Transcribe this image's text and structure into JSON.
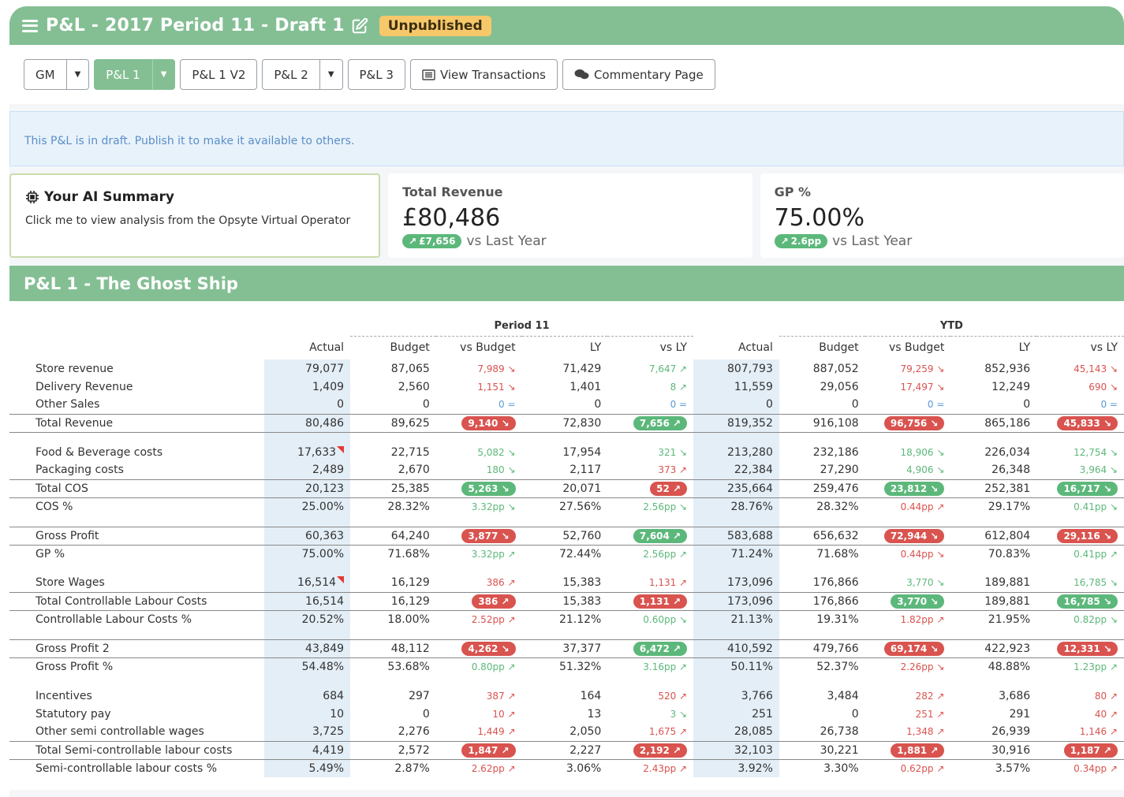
{
  "header": {
    "title": "P&L - 2017 Period 11 - Draft 1",
    "status_badge": "Unpublished"
  },
  "tabs": {
    "gm": "GM",
    "pl1": "P&L 1",
    "pl1v2": "P&L 1 V2",
    "pl2": "P&L 2",
    "pl3": "P&L 3",
    "view_transactions": "View Transactions",
    "commentary": "Commentary Page"
  },
  "alert": "This P&L is in draft. Publish it to make it available to others.",
  "ai_card": {
    "title": "Your AI Summary",
    "text": "Click me to view analysis from the Opsyte Virtual Operator"
  },
  "kpis": {
    "revenue": {
      "label": "Total Revenue",
      "value": "£80,486",
      "delta": "£7,656",
      "suffix": "vs Last Year"
    },
    "gp": {
      "label": "GP %",
      "value": "75.00%",
      "delta": "2.6pp",
      "suffix": "vs Last Year"
    }
  },
  "section_title": "P&L 1 - The Ghost Ship",
  "table": {
    "group_period": "Period 11",
    "group_ytd": "YTD",
    "columns": [
      "Actual",
      "Budget",
      "vs Budget",
      "LY",
      "vs LY",
      "Actual",
      "Budget",
      "vs Budget",
      "LY",
      "vs LY"
    ],
    "rows": [
      {
        "type": "row",
        "label": "Store revenue",
        "cells": [
          [
            "79,077"
          ],
          [
            "87,065"
          ],
          [
            "7,989",
            "r",
            "down"
          ],
          [
            "71,429"
          ],
          [
            "7,647",
            "g",
            "up"
          ],
          [
            "807,793"
          ],
          [
            "887,052"
          ],
          [
            "79,259",
            "r",
            "down"
          ],
          [
            "852,936"
          ],
          [
            "45,143",
            "r",
            "down"
          ]
        ]
      },
      {
        "type": "row",
        "label": "Delivery Revenue",
        "cells": [
          [
            "1,409"
          ],
          [
            "2,560"
          ],
          [
            "1,151",
            "r",
            "down"
          ],
          [
            "1,401"
          ],
          [
            "8",
            "g",
            "up"
          ],
          [
            "11,559"
          ],
          [
            "29,056"
          ],
          [
            "17,497",
            "r",
            "down"
          ],
          [
            "12,249"
          ],
          [
            "690",
            "r",
            "down"
          ]
        ]
      },
      {
        "type": "row",
        "label": "Other Sales",
        "cells": [
          [
            "0"
          ],
          [
            "0"
          ],
          [
            "0",
            "b",
            "eq"
          ],
          [
            "0"
          ],
          [
            "0",
            "b",
            "eq"
          ],
          [
            "0"
          ],
          [
            "0"
          ],
          [
            "0",
            "b",
            "eq"
          ],
          [
            "0"
          ],
          [
            "0",
            "b",
            "eq"
          ]
        ]
      },
      {
        "type": "tot",
        "label": "Total Revenue",
        "cells": [
          [
            "80,486"
          ],
          [
            "89,625"
          ],
          [
            "9,140",
            "R",
            "down"
          ],
          [
            "72,830"
          ],
          [
            "7,656",
            "G",
            "up"
          ],
          [
            "819,352"
          ],
          [
            "916,108"
          ],
          [
            "96,756",
            "R",
            "down"
          ],
          [
            "865,186"
          ],
          [
            "45,833",
            "R",
            "down"
          ]
        ]
      },
      {
        "type": "sp"
      },
      {
        "type": "row",
        "label": "Food & Beverage costs",
        "flag": true,
        "cells": [
          [
            "17,633"
          ],
          [
            "22,715"
          ],
          [
            "5,082",
            "g",
            "down"
          ],
          [
            "17,954"
          ],
          [
            "321",
            "g",
            "down"
          ],
          [
            "213,280"
          ],
          [
            "232,186"
          ],
          [
            "18,906",
            "g",
            "down"
          ],
          [
            "226,034"
          ],
          [
            "12,754",
            "g",
            "down"
          ]
        ]
      },
      {
        "type": "row",
        "label": "Packaging costs",
        "cells": [
          [
            "2,489"
          ],
          [
            "2,670"
          ],
          [
            "180",
            "g",
            "down"
          ],
          [
            "2,117"
          ],
          [
            "373",
            "r",
            "up"
          ],
          [
            "22,384"
          ],
          [
            "27,290"
          ],
          [
            "4,906",
            "g",
            "down"
          ],
          [
            "26,348"
          ],
          [
            "3,964",
            "g",
            "down"
          ]
        ]
      },
      {
        "type": "tot",
        "label": "Total COS",
        "cells": [
          [
            "20,123"
          ],
          [
            "25,385"
          ],
          [
            "5,263",
            "G",
            "down"
          ],
          [
            "20,071"
          ],
          [
            "52",
            "R",
            "up"
          ],
          [
            "235,664"
          ],
          [
            "259,476"
          ],
          [
            "23,812",
            "G",
            "down"
          ],
          [
            "252,381"
          ],
          [
            "16,717",
            "G",
            "down"
          ]
        ]
      },
      {
        "type": "row",
        "label": "COS %",
        "cells": [
          [
            "25.00%"
          ],
          [
            "28.32%"
          ],
          [
            "3.32pp",
            "g",
            "down"
          ],
          [
            "27.56%"
          ],
          [
            "2.56pp",
            "g",
            "down"
          ],
          [
            "28.76%"
          ],
          [
            "28.32%"
          ],
          [
            "0.44pp",
            "r",
            "up"
          ],
          [
            "29.17%"
          ],
          [
            "0.41pp",
            "g",
            "down"
          ]
        ]
      },
      {
        "type": "sp"
      },
      {
        "type": "tot",
        "label": "Gross Profit",
        "cells": [
          [
            "60,363"
          ],
          [
            "64,240"
          ],
          [
            "3,877",
            "R",
            "down"
          ],
          [
            "52,760"
          ],
          [
            "7,604",
            "G",
            "up"
          ],
          [
            "583,688"
          ],
          [
            "656,632"
          ],
          [
            "72,944",
            "R",
            "down"
          ],
          [
            "612,804"
          ],
          [
            "29,116",
            "R",
            "down"
          ]
        ]
      },
      {
        "type": "row",
        "label": "GP %",
        "cells": [
          [
            "75.00%"
          ],
          [
            "71.68%"
          ],
          [
            "3.32pp",
            "g",
            "up"
          ],
          [
            "72.44%"
          ],
          [
            "2.56pp",
            "g",
            "up"
          ],
          [
            "71.24%"
          ],
          [
            "71.68%"
          ],
          [
            "0.44pp",
            "r",
            "down"
          ],
          [
            "70.83%"
          ],
          [
            "0.41pp",
            "g",
            "up"
          ]
        ]
      },
      {
        "type": "sp"
      },
      {
        "type": "row",
        "label": "Store Wages",
        "flag": true,
        "cells": [
          [
            "16,514"
          ],
          [
            "16,129"
          ],
          [
            "386",
            "r",
            "up"
          ],
          [
            "15,383"
          ],
          [
            "1,131",
            "r",
            "up"
          ],
          [
            "173,096"
          ],
          [
            "176,866"
          ],
          [
            "3,770",
            "g",
            "down"
          ],
          [
            "189,881"
          ],
          [
            "16,785",
            "g",
            "down"
          ]
        ]
      },
      {
        "type": "tot",
        "label": "Total Controllable Labour Costs",
        "cells": [
          [
            "16,514"
          ],
          [
            "16,129"
          ],
          [
            "386",
            "R",
            "up"
          ],
          [
            "15,383"
          ],
          [
            "1,131",
            "R",
            "up"
          ],
          [
            "173,096"
          ],
          [
            "176,866"
          ],
          [
            "3,770",
            "G",
            "down"
          ],
          [
            "189,881"
          ],
          [
            "16,785",
            "G",
            "down"
          ]
        ]
      },
      {
        "type": "row",
        "label": "Controllable Labour Costs %",
        "cells": [
          [
            "20.52%"
          ],
          [
            "18.00%"
          ],
          [
            "2.52pp",
            "r",
            "up"
          ],
          [
            "21.12%"
          ],
          [
            "0.60pp",
            "g",
            "down"
          ],
          [
            "21.13%"
          ],
          [
            "19.31%"
          ],
          [
            "1.82pp",
            "r",
            "up"
          ],
          [
            "21.95%"
          ],
          [
            "0.82pp",
            "g",
            "down"
          ]
        ]
      },
      {
        "type": "sp"
      },
      {
        "type": "tot",
        "label": "Gross Profit 2",
        "cells": [
          [
            "43,849"
          ],
          [
            "48,112"
          ],
          [
            "4,262",
            "R",
            "down"
          ],
          [
            "37,377"
          ],
          [
            "6,472",
            "G",
            "up"
          ],
          [
            "410,592"
          ],
          [
            "479,766"
          ],
          [
            "69,174",
            "R",
            "down"
          ],
          [
            "422,923"
          ],
          [
            "12,331",
            "R",
            "down"
          ]
        ]
      },
      {
        "type": "row",
        "label": "Gross Profit %",
        "cells": [
          [
            "54.48%"
          ],
          [
            "53.68%"
          ],
          [
            "0.80pp",
            "g",
            "up"
          ],
          [
            "51.32%"
          ],
          [
            "3.16pp",
            "g",
            "up"
          ],
          [
            "50.11%"
          ],
          [
            "52.37%"
          ],
          [
            "2.26pp",
            "r",
            "down"
          ],
          [
            "48.88%"
          ],
          [
            "1.23pp",
            "g",
            "up"
          ]
        ]
      },
      {
        "type": "sp"
      },
      {
        "type": "row",
        "label": "Incentives",
        "cells": [
          [
            "684"
          ],
          [
            "297"
          ],
          [
            "387",
            "r",
            "up"
          ],
          [
            "164"
          ],
          [
            "520",
            "r",
            "up"
          ],
          [
            "3,766"
          ],
          [
            "3,484"
          ],
          [
            "282",
            "r",
            "up"
          ],
          [
            "3,686"
          ],
          [
            "80",
            "r",
            "up"
          ]
        ]
      },
      {
        "type": "row",
        "label": "Statutory pay",
        "cells": [
          [
            "10"
          ],
          [
            "0"
          ],
          [
            "10",
            "r",
            "up"
          ],
          [
            "13"
          ],
          [
            "3",
            "g",
            "down"
          ],
          [
            "251"
          ],
          [
            "0"
          ],
          [
            "251",
            "r",
            "up"
          ],
          [
            "291"
          ],
          [
            "40",
            "r",
            "up"
          ]
        ]
      },
      {
        "type": "row",
        "label": "Other semi controllable wages",
        "cells": [
          [
            "3,725"
          ],
          [
            "2,276"
          ],
          [
            "1,449",
            "r",
            "up"
          ],
          [
            "2,050"
          ],
          [
            "1,675",
            "r",
            "up"
          ],
          [
            "28,085"
          ],
          [
            "26,738"
          ],
          [
            "1,348",
            "r",
            "up"
          ],
          [
            "26,939"
          ],
          [
            "1,146",
            "r",
            "up"
          ]
        ]
      },
      {
        "type": "tot",
        "label": "Total Semi-controllable labour costs",
        "cells": [
          [
            "4,419"
          ],
          [
            "2,572"
          ],
          [
            "1,847",
            "R",
            "up"
          ],
          [
            "2,227"
          ],
          [
            "2,192",
            "R",
            "up"
          ],
          [
            "32,103"
          ],
          [
            "30,221"
          ],
          [
            "1,881",
            "R",
            "up"
          ],
          [
            "30,916"
          ],
          [
            "1,187",
            "R",
            "up"
          ]
        ]
      },
      {
        "type": "row",
        "label": "Semi-controllable labour costs %",
        "cells": [
          [
            "5.49%"
          ],
          [
            "2.87%"
          ],
          [
            "2.62pp",
            "r",
            "up"
          ],
          [
            "3.06%"
          ],
          [
            "2.43pp",
            "r",
            "up"
          ],
          [
            "3.92%"
          ],
          [
            "3.30%"
          ],
          [
            "0.62pp",
            "r",
            "up"
          ],
          [
            "3.57%"
          ],
          [
            "0.34pp",
            "r",
            "up"
          ]
        ]
      }
    ]
  }
}
